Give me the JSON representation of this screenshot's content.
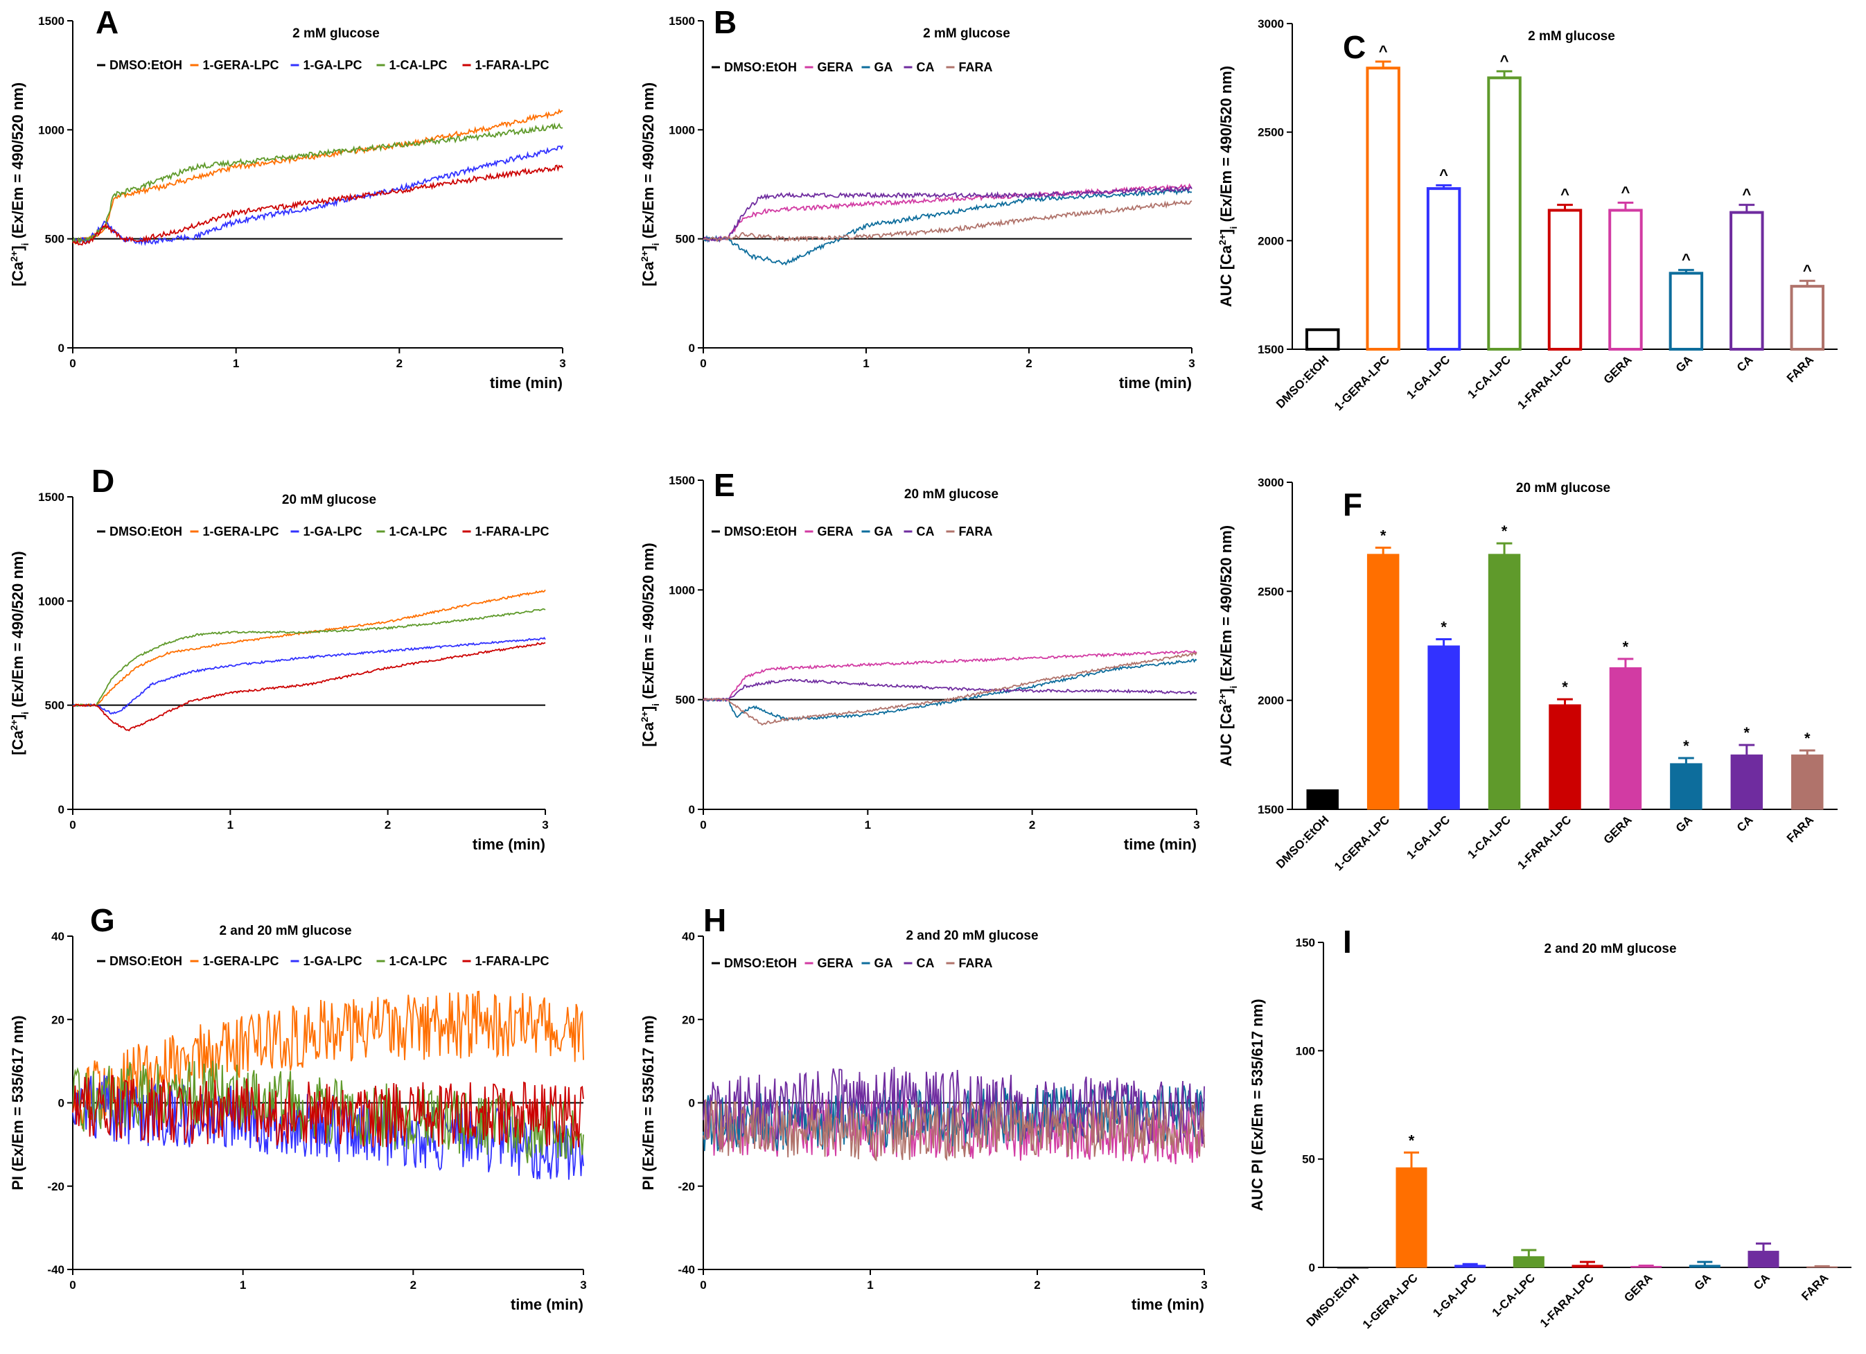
{
  "colors": {
    "DMSO:EtOH": "#000000",
    "1-GERA-LPC": "#ff6f00",
    "1-GA-LPC": "#3232ff",
    "1-CA-LPC": "#5f9a2b",
    "1-FARA-LPC": "#cc0000",
    "GERA": "#d23ba3",
    "GA": "#0d6d9c",
    "CA": "#6f2c9f",
    "FARA": "#b0736b"
  },
  "chart_data": [
    {
      "id": "A",
      "letter": "A",
      "type": "line",
      "title": "2 mM glucose",
      "xlabel": "time (min)",
      "ylabel": "[Ca2+]i (Ex/Em = 490/520 nm)",
      "xlim": [
        0,
        3
      ],
      "ylim": [
        0,
        1500
      ],
      "xticks": [
        "0",
        "1",
        "2",
        "3"
      ],
      "yticks": [
        "0",
        "500",
        "1000",
        "1500"
      ],
      "baseline": 500,
      "legend_position": "top",
      "series": [
        {
          "name": "DMSO:EtOH",
          "x": [
            0,
            3
          ],
          "values": [
            500,
            500
          ]
        },
        {
          "name": "1-GERA-LPC",
          "x": [
            0,
            0.1,
            0.2,
            0.25,
            0.3,
            0.5,
            0.75,
            1,
            1.5,
            2,
            2.5,
            3
          ],
          "values": [
            490,
            495,
            550,
            680,
            700,
            730,
            780,
            830,
            880,
            930,
            1000,
            1085
          ],
          "noise": 12
        },
        {
          "name": "1-GA-LPC",
          "x": [
            0,
            0.1,
            0.2,
            0.3,
            0.45,
            0.75,
            1,
            1.5,
            2,
            2.5,
            3
          ],
          "values": [
            490,
            495,
            580,
            500,
            485,
            510,
            580,
            650,
            730,
            830,
            920
          ],
          "noise": 12
        },
        {
          "name": "1-CA-LPC",
          "x": [
            0,
            0.1,
            0.2,
            0.25,
            0.3,
            0.5,
            0.75,
            1,
            1.5,
            2,
            2.5,
            3
          ],
          "values": [
            490,
            495,
            560,
            700,
            710,
            760,
            830,
            850,
            890,
            930,
            970,
            1020
          ],
          "noise": 12
        },
        {
          "name": "1-FARA-LPC",
          "x": [
            0,
            0.1,
            0.2,
            0.3,
            0.45,
            0.75,
            1,
            1.5,
            2,
            2.5,
            3
          ],
          "values": [
            485,
            480,
            560,
            500,
            500,
            560,
            620,
            670,
            720,
            780,
            830
          ],
          "noise": 12
        }
      ]
    },
    {
      "id": "B",
      "letter": "B",
      "type": "line",
      "title": "2 mM glucose",
      "xlabel": "time (min)",
      "ylabel": "[Ca2+]i (Ex/Em = 490/520 nm)",
      "xlim": [
        0,
        3
      ],
      "ylim": [
        0,
        1500
      ],
      "xticks": [
        "0",
        "1",
        "2",
        "3"
      ],
      "yticks": [
        "0",
        "500",
        "1000",
        "1500"
      ],
      "baseline": 500,
      "legend_position": "top",
      "series": [
        {
          "name": "DMSO:EtOH",
          "x": [
            0,
            3
          ],
          "values": [
            500,
            500
          ]
        },
        {
          "name": "GERA",
          "x": [
            0,
            0.15,
            0.25,
            0.4,
            1,
            2,
            3
          ],
          "values": [
            500,
            500,
            600,
            630,
            660,
            700,
            740
          ],
          "noise": 10
        },
        {
          "name": "GA",
          "x": [
            0,
            0.15,
            0.3,
            0.5,
            0.75,
            1,
            1.5,
            2,
            3
          ],
          "values": [
            500,
            500,
            420,
            390,
            470,
            560,
            620,
            680,
            720
          ],
          "noise": 10
        },
        {
          "name": "CA",
          "x": [
            0,
            0.15,
            0.25,
            0.35,
            0.5,
            1,
            2,
            3
          ],
          "values": [
            500,
            500,
            620,
            690,
            700,
            700,
            700,
            730
          ],
          "noise": 10
        },
        {
          "name": "FARA",
          "x": [
            0,
            0.15,
            0.25,
            0.5,
            1,
            1.5,
            2,
            2.5,
            3
          ],
          "values": [
            500,
            500,
            520,
            500,
            510,
            540,
            590,
            630,
            670
          ],
          "noise": 10
        }
      ]
    },
    {
      "id": "C",
      "letter": "C",
      "type": "bar",
      "style": "outline",
      "title": "2 mM glucose",
      "ylabel": "AUC [Ca2+]i (Ex/Em = 490/520 nm)",
      "ylim": [
        1500,
        3000
      ],
      "yticks": [
        "1500",
        "2000",
        "2500",
        "3000"
      ],
      "categories": [
        "DMSO:EtOH",
        "1-GERA-LPC",
        "1-GA-LPC",
        "1-CA-LPC",
        "1-FARA-LPC",
        "GERA",
        "GA",
        "CA",
        "FARA"
      ],
      "values": [
        1590,
        2795,
        2240,
        2750,
        2140,
        2140,
        1850,
        2130,
        1790
      ],
      "errors": [
        0,
        30,
        15,
        30,
        25,
        35,
        15,
        35,
        25
      ],
      "annotations": [
        "",
        "^",
        "^",
        "^",
        "^",
        "^",
        "^",
        "^",
        "^"
      ]
    },
    {
      "id": "D",
      "letter": "D",
      "type": "line",
      "title": "20 mM glucose",
      "xlabel": "time (min)",
      "ylabel": "[Ca2+]i (Ex/Em = 490/520 nm)",
      "xlim": [
        0,
        3
      ],
      "ylim": [
        0,
        1500
      ],
      "xticks": [
        "0",
        "1",
        "2",
        "3"
      ],
      "yticks": [
        "0",
        "500",
        "1000",
        "1500"
      ],
      "baseline": 500,
      "legend_position": "top",
      "series": [
        {
          "name": "DMSO:EtOH",
          "x": [
            0,
            3
          ],
          "values": [
            500,
            500
          ]
        },
        {
          "name": "1-GERA-LPC",
          "x": [
            0,
            0.15,
            0.25,
            0.4,
            0.6,
            1,
            1.5,
            2,
            2.5,
            3
          ],
          "values": [
            500,
            500,
            580,
            680,
            750,
            800,
            850,
            900,
            980,
            1050
          ],
          "noise": 5
        },
        {
          "name": "1-GA-LPC",
          "x": [
            0,
            0.15,
            0.25,
            0.3,
            0.5,
            0.75,
            1,
            1.5,
            2,
            2.5,
            3
          ],
          "values": [
            500,
            500,
            460,
            470,
            600,
            660,
            690,
            730,
            760,
            790,
            820
          ],
          "noise": 5
        },
        {
          "name": "1-CA-LPC",
          "x": [
            0,
            0.15,
            0.25,
            0.4,
            0.6,
            0.8,
            1,
            1.5,
            2,
            2.5,
            3
          ],
          "values": [
            500,
            500,
            630,
            730,
            800,
            840,
            850,
            850,
            870,
            910,
            960
          ],
          "noise": 5
        },
        {
          "name": "1-FARA-LPC",
          "x": [
            0,
            0.15,
            0.25,
            0.35,
            0.5,
            0.75,
            1,
            1.5,
            2,
            2.5,
            3
          ],
          "values": [
            500,
            500,
            420,
            380,
            430,
            520,
            560,
            600,
            680,
            740,
            800
          ],
          "noise": 5
        }
      ]
    },
    {
      "id": "E",
      "letter": "E",
      "type": "line",
      "title": "20 mM glucose",
      "xlabel": "time (min)",
      "ylabel": "[Ca2+]i (Ex/Em = 490/520 nm)",
      "xlim": [
        0,
        3
      ],
      "ylim": [
        0,
        1500
      ],
      "xticks": [
        "0",
        "1",
        "2",
        "3"
      ],
      "yticks": [
        "0",
        "500",
        "1000",
        "1500"
      ],
      "baseline": 500,
      "legend_position": "top",
      "series": [
        {
          "name": "DMSO:EtOH",
          "x": [
            0,
            3
          ],
          "values": [
            500,
            500
          ]
        },
        {
          "name": "GERA",
          "x": [
            0,
            0.15,
            0.25,
            0.4,
            1,
            2,
            3
          ],
          "values": [
            500,
            500,
            600,
            640,
            660,
            690,
            720
          ],
          "noise": 6
        },
        {
          "name": "GA",
          "x": [
            0,
            0.15,
            0.2,
            0.3,
            0.5,
            1,
            1.5,
            2,
            2.5,
            3
          ],
          "values": [
            500,
            500,
            420,
            470,
            410,
            430,
            490,
            560,
            640,
            680
          ],
          "noise": 6
        },
        {
          "name": "CA",
          "x": [
            0,
            0.15,
            0.25,
            0.5,
            1,
            1.5,
            2,
            2.5,
            3
          ],
          "values": [
            500,
            500,
            560,
            590,
            570,
            550,
            540,
            540,
            530
          ],
          "noise": 6
        },
        {
          "name": "FARA",
          "x": [
            0,
            0.15,
            0.25,
            0.35,
            0.5,
            1,
            1.5,
            2,
            2.5,
            3
          ],
          "values": [
            500,
            500,
            440,
            390,
            410,
            450,
            500,
            580,
            650,
            710
          ],
          "noise": 6
        }
      ]
    },
    {
      "id": "F",
      "letter": "F",
      "type": "bar",
      "style": "filled",
      "title": "20 mM glucose",
      "ylabel": "AUC [Ca2+]i (Ex/Em = 490/520 nm)",
      "ylim": [
        1500,
        3000
      ],
      "yticks": [
        "1500",
        "2000",
        "2500",
        "3000"
      ],
      "categories": [
        "DMSO:EtOH",
        "1-GERA-LPC",
        "1-GA-LPC",
        "1-CA-LPC",
        "1-FARA-LPC",
        "GERA",
        "GA",
        "CA",
        "FARA"
      ],
      "values": [
        1590,
        2670,
        2250,
        2670,
        1980,
        2150,
        1710,
        1750,
        1750
      ],
      "errors": [
        0,
        30,
        30,
        50,
        25,
        40,
        25,
        45,
        20
      ],
      "annotations": [
        "",
        "*",
        "*",
        "*",
        "*",
        "*",
        "*",
        "*",
        "*"
      ]
    },
    {
      "id": "G",
      "letter": "G",
      "type": "line",
      "title": "2 and 20 mM glucose",
      "xlabel": "time (min)",
      "ylabel": "PI (Ex/Em = 535/617 nm)",
      "xlim": [
        0,
        3
      ],
      "ylim": [
        -40,
        40
      ],
      "xticks": [
        "0",
        "1",
        "2",
        "3"
      ],
      "yticks": [
        "-40",
        "-20",
        "0",
        "20",
        "40"
      ],
      "baseline": 0,
      "legend_position": "top",
      "series": [
        {
          "name": "DMSO:EtOH",
          "x": [
            0,
            3
          ],
          "values": [
            0,
            0
          ]
        },
        {
          "name": "1-GERA-LPC",
          "x": [
            0,
            0.3,
            0.6,
            1,
            1.5,
            2,
            2.5,
            3
          ],
          "values": [
            0,
            6,
            10,
            14,
            17,
            18,
            19,
            17
          ],
          "noise": 8
        },
        {
          "name": "1-GA-LPC",
          "x": [
            0,
            0.5,
            1,
            1.5,
            2,
            2.5,
            3
          ],
          "values": [
            0,
            -3,
            -4,
            -6,
            -8,
            -9,
            -12
          ],
          "noise": 8
        },
        {
          "name": "1-CA-LPC",
          "x": [
            0,
            0.5,
            1,
            1.5,
            2,
            2.5,
            3
          ],
          "values": [
            0,
            3,
            2,
            -2,
            -4,
            -6,
            -8
          ],
          "noise": 8
        },
        {
          "name": "1-FARA-LPC",
          "x": [
            0,
            0.5,
            1,
            1.5,
            2,
            2.5,
            3
          ],
          "values": [
            0,
            -2,
            -2,
            -3,
            -3,
            -3,
            -3
          ],
          "noise": 8
        }
      ]
    },
    {
      "id": "H",
      "letter": "H",
      "type": "line",
      "title": "2 and 20 mM glucose",
      "xlabel": "time (min)",
      "ylabel": "PI (Ex/Em = 535/617 nm)",
      "xlim": [
        0,
        3
      ],
      "ylim": [
        -40,
        40
      ],
      "xticks": [
        "0",
        "1",
        "2",
        "3"
      ],
      "yticks": [
        "-40",
        "-20",
        "0",
        "20",
        "40"
      ],
      "baseline": 0,
      "legend_position": "top",
      "series": [
        {
          "name": "DMSO:EtOH",
          "x": [
            0,
            3
          ],
          "values": [
            0,
            0
          ]
        },
        {
          "name": "GERA",
          "x": [
            0,
            1,
            2,
            3
          ],
          "values": [
            -6,
            -6,
            -7,
            -8
          ],
          "noise": 7
        },
        {
          "name": "GA",
          "x": [
            0,
            1,
            2,
            3
          ],
          "values": [
            -5,
            -4,
            -3,
            -2
          ],
          "noise": 7
        },
        {
          "name": "CA",
          "x": [
            0,
            1,
            2,
            3
          ],
          "values": [
            -2,
            1,
            -1,
            -3
          ],
          "noise": 8
        },
        {
          "name": "FARA",
          "x": [
            0,
            1,
            2,
            3
          ],
          "values": [
            -6,
            -7,
            -6,
            -6
          ],
          "noise": 7
        }
      ]
    },
    {
      "id": "I",
      "letter": "I",
      "type": "bar",
      "style": "filled",
      "title": "2 and 20 mM glucose",
      "ylabel": "AUC PI (Ex/Em = 535/617 nm)",
      "ylim": [
        0,
        150
      ],
      "yticks": [
        "0",
        "50",
        "100",
        "150"
      ],
      "categories": [
        "DMSO:EtOH",
        "1-GERA-LPC",
        "1-GA-LPC",
        "1-CA-LPC",
        "1-FARA-LPC",
        "GERA",
        "GA",
        "CA",
        "FARA"
      ],
      "values": [
        0,
        46,
        1,
        5,
        1,
        0.5,
        1,
        7.5,
        0.3
      ],
      "errors": [
        0,
        7,
        0.5,
        3,
        1.5,
        0.3,
        1.5,
        3.5,
        0.2
      ],
      "annotations": [
        "",
        "*",
        "",
        "",
        "",
        "",
        "",
        "",
        ""
      ]
    }
  ]
}
